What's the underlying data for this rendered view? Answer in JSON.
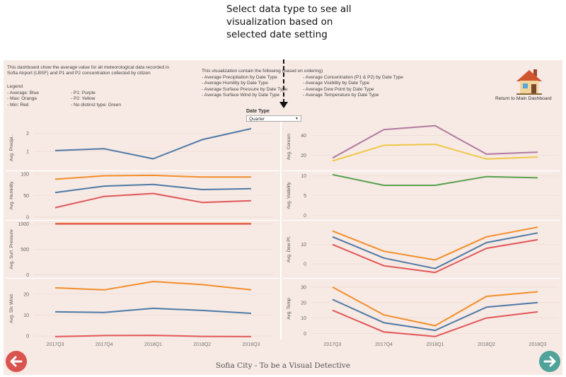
{
  "annotation": {
    "line1": "Select data type to see all",
    "line2": "visualization based on",
    "line3": "selected date setting"
  },
  "intro": {
    "line1": "This dashboard show the average value for all meteorological data recorded in",
    "line2": "Sofia Airport (LBSF) and P1 and P2 concentration collected by citizen"
  },
  "legend": {
    "title": "Legend",
    "items": [
      "- Average:  Blue",
      "- Max: Orange",
      "- Min: Red",
      "- P1: Purple",
      "- P2: Yellow",
      "- No distinct type: Green"
    ]
  },
  "contents": {
    "heading": "This visualization contain the following (based on ordering)",
    "left": [
      "- Average Precipitation by Date Type",
      "- Average Humility by Date Type",
      "- Average Surface Pressure by Date Type",
      "- Average Surface Wind by Date Type"
    ],
    "right": [
      "- Average Concentration (P1 & P2) by Date Type",
      "- Average Visibility by Date Type",
      "- Average Dew Point by Date Type",
      "- Average Temperature by Date Type"
    ]
  },
  "filter": {
    "label": "Date Type",
    "value": "Quarter"
  },
  "home": {
    "label": "Return to Main Dashboard",
    "icon": "house-icon"
  },
  "footer": {
    "title": "Sofia City - To be a Visual Detective"
  },
  "colors": {
    "average": "#4e79a7",
    "max": "#f28e2b",
    "min": "#e15759",
    "p1": "#b07aa1",
    "p2": "#edc948",
    "other": "#59a14f",
    "background": "#f7e9e3",
    "prev": "#d9534f",
    "next": "#4fa39a"
  },
  "chart_data": [
    {
      "type": "line",
      "name": "precip",
      "ylabel": "Avg. Precipi..",
      "ticks": [
        1,
        2
      ],
      "ylim": [
        0,
        2.4
      ],
      "categories": [
        "2017Q3",
        "2017Q4",
        "2018Q1",
        "2018Q2",
        "2018Q3"
      ],
      "series": [
        {
          "name": "Average",
          "color": "average",
          "values": [
            1.05,
            1.15,
            0.6,
            1.65,
            2.25
          ]
        }
      ]
    },
    {
      "type": "line",
      "name": "humidity",
      "ylabel": "Avg. Humidity",
      "ticks": [
        0,
        50,
        100
      ],
      "ylim": [
        -5,
        105
      ],
      "categories": [
        "2017Q3",
        "2017Q4",
        "2018Q1",
        "2018Q2",
        "2018Q3"
      ],
      "series": [
        {
          "name": "Max",
          "color": "max",
          "values": [
            88,
            96,
            97,
            93,
            93
          ]
        },
        {
          "name": "Average",
          "color": "average",
          "values": [
            57,
            72,
            76,
            64,
            66
          ]
        },
        {
          "name": "Min",
          "color": "min",
          "values": [
            22,
            48,
            55,
            34,
            38
          ]
        }
      ]
    },
    {
      "type": "line",
      "name": "pressure",
      "ylabel": "Avg. Surf. Pressure",
      "ticks": [
        0,
        500,
        1000
      ],
      "ylim": [
        -50,
        1050
      ],
      "categories": [
        "2017Q3",
        "2017Q4",
        "2018Q1",
        "2018Q2",
        "2018Q3"
      ],
      "series": [
        {
          "name": "Average",
          "color": "average",
          "values": [
            1005,
            1005,
            1005,
            1005,
            1005
          ]
        },
        {
          "name": "Max",
          "color": "max",
          "values": [
            1010,
            1010,
            1010,
            1010,
            1010
          ]
        },
        {
          "name": "Min",
          "color": "min",
          "values": [
            1000,
            1000,
            1000,
            1000,
            1000
          ]
        }
      ]
    },
    {
      "type": "line",
      "name": "wind",
      "ylabel": "Avg. Sfc Wind",
      "ticks": [
        0,
        10,
        20
      ],
      "ylim": [
        -1,
        27
      ],
      "categories": [
        "2017Q3",
        "2017Q4",
        "2018Q1",
        "2018Q2",
        "2018Q3"
      ],
      "series": [
        {
          "name": "Max",
          "color": "max",
          "values": [
            23,
            22,
            26,
            24.5,
            22
          ]
        },
        {
          "name": "Average",
          "color": "average",
          "values": [
            11.5,
            11.2,
            13.2,
            12.2,
            10.8
          ]
        },
        {
          "name": "Min",
          "color": "min",
          "values": [
            -0.3,
            0.2,
            0.3,
            -0.2,
            -0.3
          ]
        }
      ]
    },
    {
      "type": "line",
      "name": "concentration",
      "ylabel": "Avg. Concen",
      "ticks": [
        20,
        40
      ],
      "ylim": [
        5,
        52
      ],
      "categories": [
        "2017Q3",
        "2017Q4",
        "2018Q1",
        "2018Q2",
        "2018Q3"
      ],
      "series": [
        {
          "name": "P1",
          "color": "p1",
          "values": [
            17,
            46,
            50,
            21,
            23
          ]
        },
        {
          "name": "P2",
          "color": "p2",
          "values": [
            14,
            30,
            31,
            16,
            18
          ]
        }
      ]
    },
    {
      "type": "line",
      "name": "visibility",
      "ylabel": "Avg. Visibility",
      "ticks": [
        0,
        5,
        10
      ],
      "ylim": [
        -1,
        11
      ],
      "categories": [
        "2017Q3",
        "2017Q4",
        "2018Q1",
        "2018Q2",
        "2018Q3"
      ],
      "series": [
        {
          "name": "Visibility",
          "color": "other",
          "values": [
            10.3,
            7.6,
            7.6,
            9.8,
            9.5
          ]
        }
      ]
    },
    {
      "type": "line",
      "name": "dewpoint",
      "ylabel": "Avg. Dew Pt.",
      "ticks": [
        0,
        10
      ],
      "ylim": [
        -7,
        22
      ],
      "categories": [
        "2017Q3",
        "2017Q4",
        "2018Q1",
        "2018Q2",
        "2018Q3"
      ],
      "series": [
        {
          "name": "Max",
          "color": "max",
          "values": [
            17,
            6.5,
            2,
            14,
            19
          ]
        },
        {
          "name": "Average",
          "color": "average",
          "values": [
            14,
            3,
            -2.5,
            11,
            16
          ]
        },
        {
          "name": "Min",
          "color": "min",
          "values": [
            10,
            -1,
            -4.5,
            8,
            12.5
          ]
        }
      ]
    },
    {
      "type": "line",
      "name": "temp",
      "ylabel": "Avg. Temp",
      "ticks": [
        0,
        10,
        20,
        30
      ],
      "ylim": [
        -3,
        35
      ],
      "categories": [
        "2017Q3",
        "2017Q4",
        "2018Q1",
        "2018Q2",
        "2018Q3"
      ],
      "series": [
        {
          "name": "Max",
          "color": "max",
          "values": [
            30,
            12,
            5,
            24,
            27
          ]
        },
        {
          "name": "Average",
          "color": "average",
          "values": [
            22,
            7,
            2,
            17,
            20
          ]
        },
        {
          "name": "Min",
          "color": "min",
          "values": [
            15,
            1,
            -2,
            10,
            14
          ]
        }
      ]
    }
  ]
}
